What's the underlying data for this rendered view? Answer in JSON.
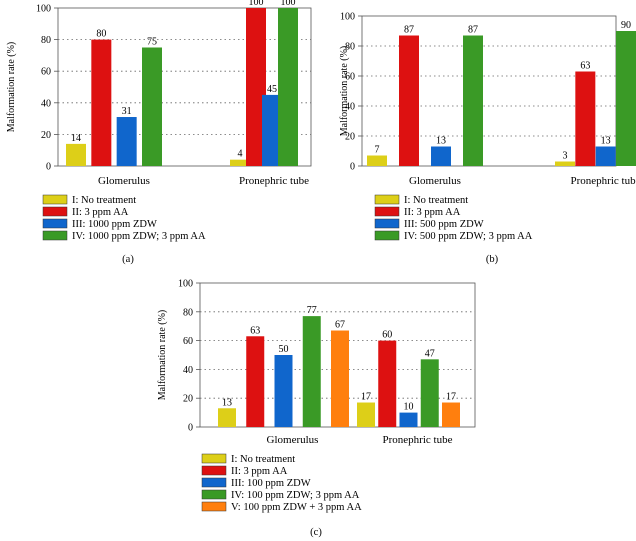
{
  "colors": {
    "I": "#ddcf18",
    "II": "#dd1111",
    "III": "#1066cc",
    "IV": "#3a9a26",
    "V": "#ff7f0e"
  },
  "chart_data": [
    {
      "type": "bar",
      "panel": "(a)",
      "ylabel": "Malformation rate (%)",
      "ylim": [
        0,
        100
      ],
      "yticks": [
        "0",
        "20",
        "40",
        "60",
        "80",
        "100"
      ],
      "categories": [
        "Glomerulus",
        "Pronephric tube"
      ],
      "grid": "horizontal dotted",
      "legend": "bottom",
      "series": [
        {
          "name": "I: No treatment",
          "key": "I",
          "values": [
            14,
            4
          ]
        },
        {
          "name": "II: 3 ppm AA",
          "key": "II",
          "values": [
            80,
            100
          ]
        },
        {
          "name": "III: 1000 ppm ZDW",
          "key": "III",
          "values": [
            31,
            45
          ]
        },
        {
          "name": "IV: 1000 ppm ZDW; 3 ppm AA",
          "key": "IV",
          "values": [
            75,
            100
          ]
        }
      ]
    },
    {
      "type": "bar",
      "panel": "(b)",
      "ylabel": "Malformation rate (%)",
      "ylim": [
        0,
        100
      ],
      "yticks": [
        "0",
        "20",
        "40",
        "60",
        "80",
        "100"
      ],
      "categories": [
        "Glomerulus",
        "Pronephric tube"
      ],
      "grid": "horizontal dotted",
      "legend": "bottom",
      "series": [
        {
          "name": "I: No treatment",
          "key": "I",
          "values": [
            7,
            3
          ]
        },
        {
          "name": "II: 3 ppm AA",
          "key": "II",
          "values": [
            87,
            63
          ]
        },
        {
          "name": "III: 500 ppm ZDW",
          "key": "III",
          "values": [
            13,
            13
          ]
        },
        {
          "name": "IV: 500 ppm ZDW; 3 ppm AA",
          "key": "IV",
          "values": [
            87,
            90
          ]
        }
      ]
    },
    {
      "type": "bar",
      "panel": "(c)",
      "ylabel": "Malformation rate (%)",
      "ylim": [
        0,
        100
      ],
      "yticks": [
        "0",
        "20",
        "40",
        "60",
        "80",
        "100"
      ],
      "categories": [
        "Glomerulus",
        "Pronephric tube"
      ],
      "grid": "horizontal dotted",
      "legend": "bottom",
      "series": [
        {
          "name": "I: No treatment",
          "key": "I",
          "values": [
            13,
            17
          ]
        },
        {
          "name": "II: 3 ppm AA",
          "key": "II",
          "values": [
            63,
            60
          ]
        },
        {
          "name": "III: 100 ppm ZDW",
          "key": "III",
          "values": [
            50,
            10
          ]
        },
        {
          "name": "IV: 100 ppm ZDW; 3 ppm AA",
          "key": "IV",
          "values": [
            77,
            47
          ]
        },
        {
          "name": "V: 100 ppm ZDW + 3 ppm AA",
          "key": "V",
          "values": [
            67,
            17
          ]
        }
      ]
    }
  ]
}
